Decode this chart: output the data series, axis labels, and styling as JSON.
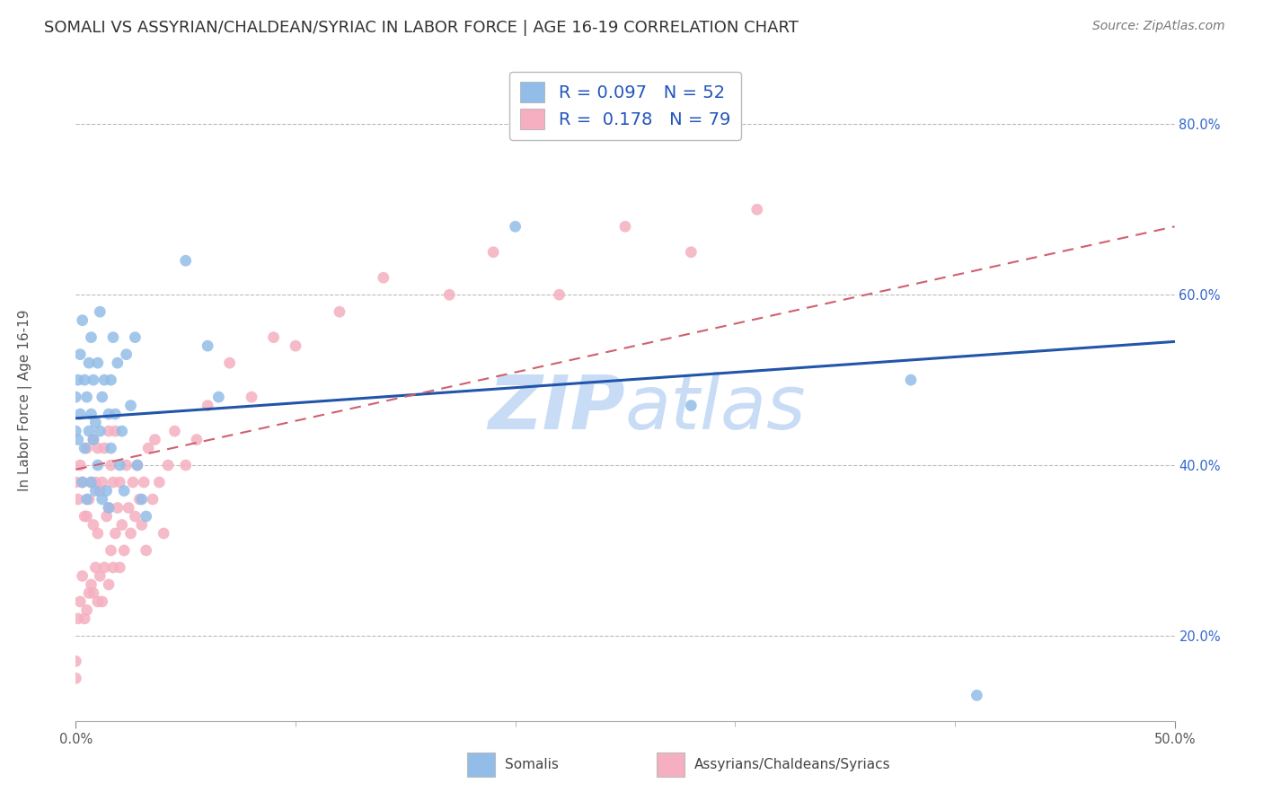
{
  "title": "SOMALI VS ASSYRIAN/CHALDEAN/SYRIAC IN LABOR FORCE | AGE 16-19 CORRELATION CHART",
  "source": "Source: ZipAtlas.com",
  "ylabel_label": "In Labor Force | Age 16-19",
  "xlim": [
    0.0,
    0.5
  ],
  "ylim": [
    0.1,
    0.88
  ],
  "legend_somali_R": "0.097",
  "legend_somali_N": "52",
  "legend_assyrian_R": "0.178",
  "legend_assyrian_N": "79",
  "somali_color": "#92bde8",
  "assyrian_color": "#f5afc0",
  "somali_line_color": "#2255aa",
  "assyrian_line_color": "#d06070",
  "watermark_zip": "ZIP",
  "watermark_atlas": "atlas",
  "watermark_color": "#c8ddf5",
  "somali_points_x": [
    0.0,
    0.0,
    0.001,
    0.001,
    0.002,
    0.002,
    0.003,
    0.003,
    0.004,
    0.004,
    0.005,
    0.005,
    0.006,
    0.006,
    0.007,
    0.007,
    0.007,
    0.008,
    0.008,
    0.009,
    0.009,
    0.01,
    0.01,
    0.011,
    0.011,
    0.012,
    0.012,
    0.013,
    0.014,
    0.015,
    0.015,
    0.016,
    0.016,
    0.017,
    0.018,
    0.019,
    0.02,
    0.021,
    0.022,
    0.023,
    0.025,
    0.027,
    0.028,
    0.03,
    0.032,
    0.05,
    0.06,
    0.065,
    0.28,
    0.38,
    0.41,
    0.2
  ],
  "somali_points_y": [
    0.44,
    0.48,
    0.43,
    0.5,
    0.46,
    0.53,
    0.38,
    0.57,
    0.42,
    0.5,
    0.36,
    0.48,
    0.44,
    0.52,
    0.38,
    0.46,
    0.55,
    0.43,
    0.5,
    0.37,
    0.45,
    0.4,
    0.52,
    0.44,
    0.58,
    0.36,
    0.48,
    0.5,
    0.37,
    0.35,
    0.46,
    0.42,
    0.5,
    0.55,
    0.46,
    0.52,
    0.4,
    0.44,
    0.37,
    0.53,
    0.47,
    0.55,
    0.4,
    0.36,
    0.34,
    0.64,
    0.54,
    0.48,
    0.47,
    0.5,
    0.13,
    0.68
  ],
  "assyrian_points_x": [
    0.0,
    0.0,
    0.0,
    0.001,
    0.001,
    0.002,
    0.002,
    0.003,
    0.003,
    0.004,
    0.004,
    0.005,
    0.005,
    0.005,
    0.006,
    0.006,
    0.007,
    0.007,
    0.008,
    0.008,
    0.008,
    0.009,
    0.009,
    0.01,
    0.01,
    0.01,
    0.011,
    0.011,
    0.012,
    0.012,
    0.013,
    0.013,
    0.014,
    0.015,
    0.015,
    0.015,
    0.016,
    0.016,
    0.017,
    0.017,
    0.018,
    0.018,
    0.019,
    0.02,
    0.02,
    0.021,
    0.022,
    0.023,
    0.024,
    0.025,
    0.026,
    0.027,
    0.028,
    0.029,
    0.03,
    0.031,
    0.032,
    0.033,
    0.035,
    0.036,
    0.038,
    0.04,
    0.042,
    0.045,
    0.05,
    0.055,
    0.06,
    0.07,
    0.08,
    0.09,
    0.1,
    0.12,
    0.14,
    0.17,
    0.19,
    0.22,
    0.25,
    0.28,
    0.31
  ],
  "assyrian_points_y": [
    0.15,
    0.17,
    0.38,
    0.22,
    0.36,
    0.24,
    0.4,
    0.27,
    0.38,
    0.22,
    0.34,
    0.23,
    0.34,
    0.42,
    0.25,
    0.36,
    0.26,
    0.38,
    0.25,
    0.33,
    0.43,
    0.28,
    0.38,
    0.24,
    0.32,
    0.42,
    0.27,
    0.37,
    0.24,
    0.38,
    0.28,
    0.42,
    0.34,
    0.26,
    0.35,
    0.44,
    0.3,
    0.4,
    0.28,
    0.38,
    0.32,
    0.44,
    0.35,
    0.28,
    0.38,
    0.33,
    0.3,
    0.4,
    0.35,
    0.32,
    0.38,
    0.34,
    0.4,
    0.36,
    0.33,
    0.38,
    0.3,
    0.42,
    0.36,
    0.43,
    0.38,
    0.32,
    0.4,
    0.44,
    0.4,
    0.43,
    0.47,
    0.52,
    0.48,
    0.55,
    0.54,
    0.58,
    0.62,
    0.6,
    0.65,
    0.6,
    0.68,
    0.65,
    0.7
  ],
  "somali_trendline_x": [
    0.0,
    0.5
  ],
  "somali_trendline_y": [
    0.455,
    0.545
  ],
  "assyrian_trendline_x": [
    0.0,
    0.5
  ],
  "assyrian_trendline_y": [
    0.395,
    0.68
  ],
  "grid_color": "#bbbbbb",
  "title_fontsize": 13,
  "axis_label_fontsize": 11,
  "tick_fontsize": 10.5,
  "legend_fontsize": 14,
  "source_fontsize": 10
}
